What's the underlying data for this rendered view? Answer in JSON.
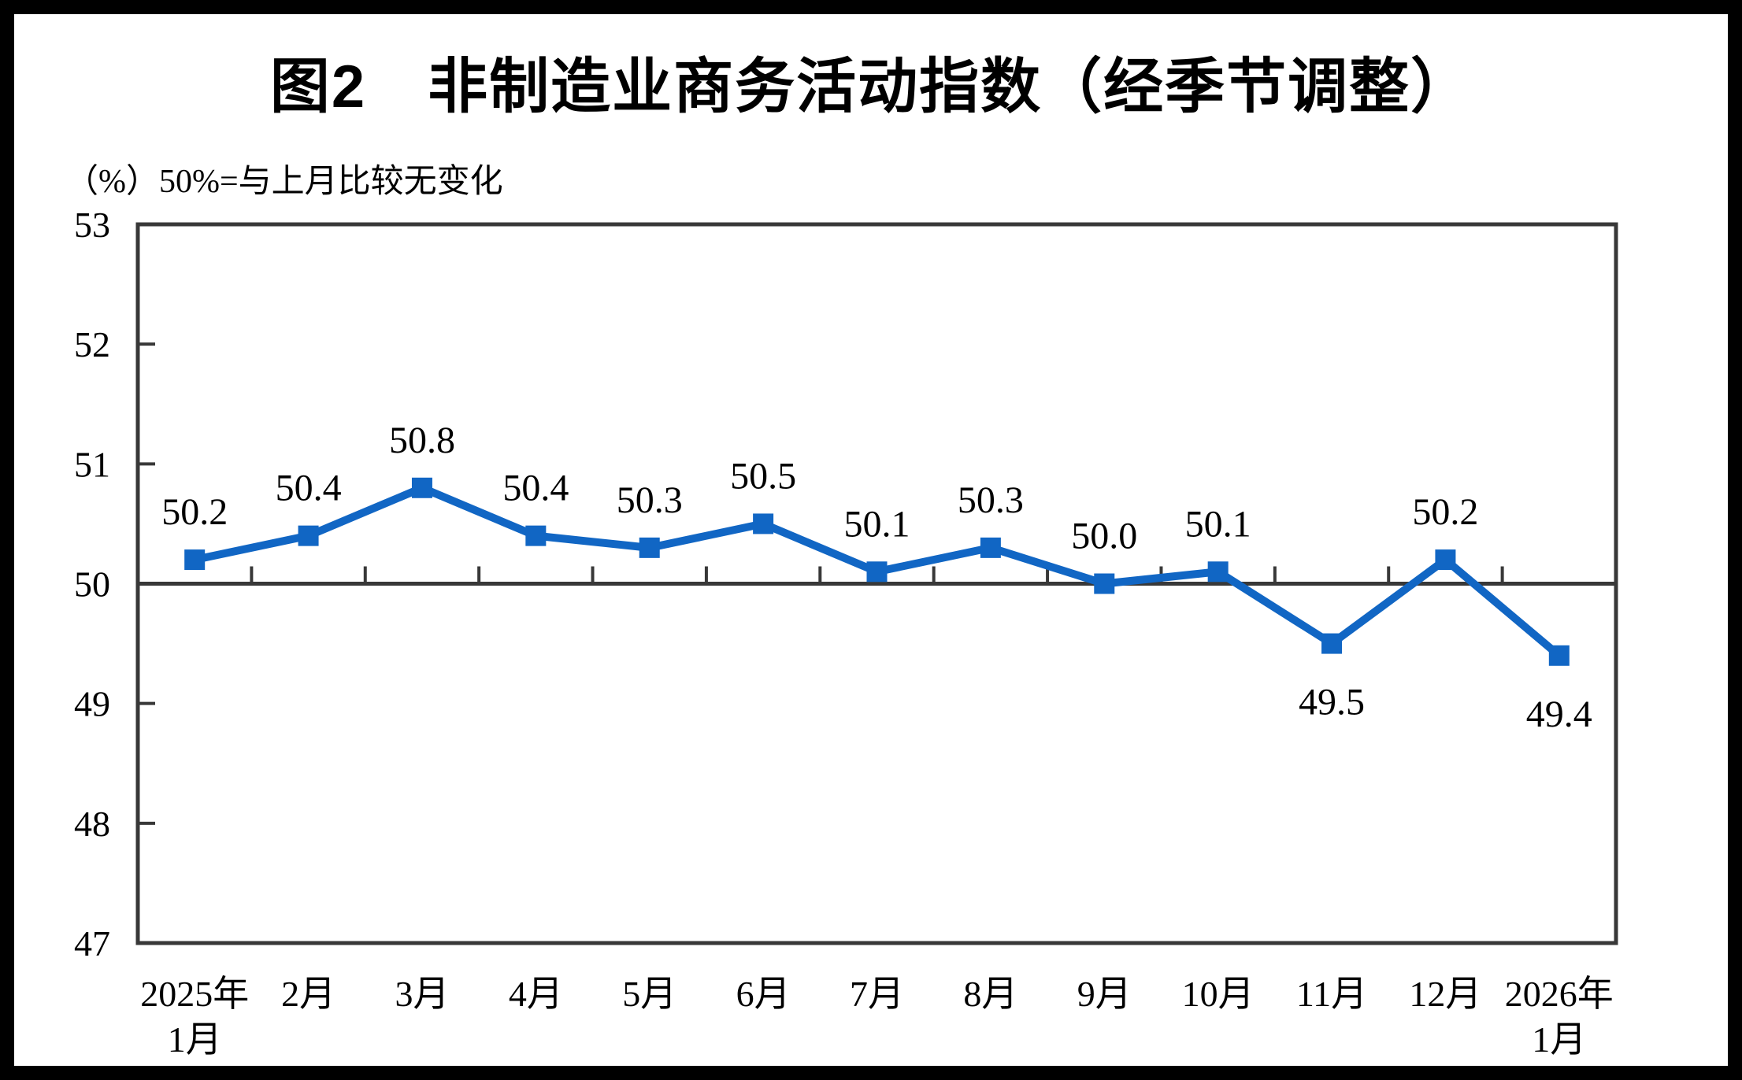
{
  "page": {
    "background_color": "#ffffff",
    "frame_color": "#000000"
  },
  "header": {
    "title": "图2　非制造业商务活动指数（经季节调整）",
    "subtitle": "（%）50%=与上月比较无变化"
  },
  "chart_data": {
    "type": "line",
    "title": "图2 非制造业商务活动指数（经季节调整）",
    "subtitle_unit_note": "（%）50%=与上月比较无变化",
    "categories": [
      [
        "2025年",
        "1月"
      ],
      [
        "2月"
      ],
      [
        "3月"
      ],
      [
        "4月"
      ],
      [
        "5月"
      ],
      [
        "6月"
      ],
      [
        "7月"
      ],
      [
        "8月"
      ],
      [
        "9月"
      ],
      [
        "10月"
      ],
      [
        "11月"
      ],
      [
        "12月"
      ],
      [
        "2026年",
        "1月"
      ]
    ],
    "series": [
      {
        "name": "非制造业商务活动指数",
        "values": [
          50.2,
          50.4,
          50.8,
          50.4,
          50.3,
          50.5,
          50.1,
          50.3,
          50.0,
          50.1,
          49.5,
          50.2,
          49.4
        ]
      }
    ],
    "data_labels": [
      "50.2",
      "50.4",
      "50.8",
      "50.4",
      "50.3",
      "50.5",
      "50.1",
      "50.3",
      "50.0",
      "50.1",
      "49.5",
      "50.2",
      "49.4"
    ],
    "data_label_positions": [
      "above",
      "above",
      "above",
      "above",
      "above",
      "above",
      "above",
      "above",
      "above",
      "above",
      "below",
      "above",
      "below"
    ],
    "ylim": [
      47,
      53
    ],
    "yticks": [
      47,
      48,
      49,
      50,
      51,
      52,
      53
    ],
    "reference_line_value": 50,
    "grid": false,
    "legend": false,
    "colors": {
      "line": "#1166C4",
      "marker": "#1166C4",
      "axis": "#383838",
      "text": "#000000"
    }
  }
}
